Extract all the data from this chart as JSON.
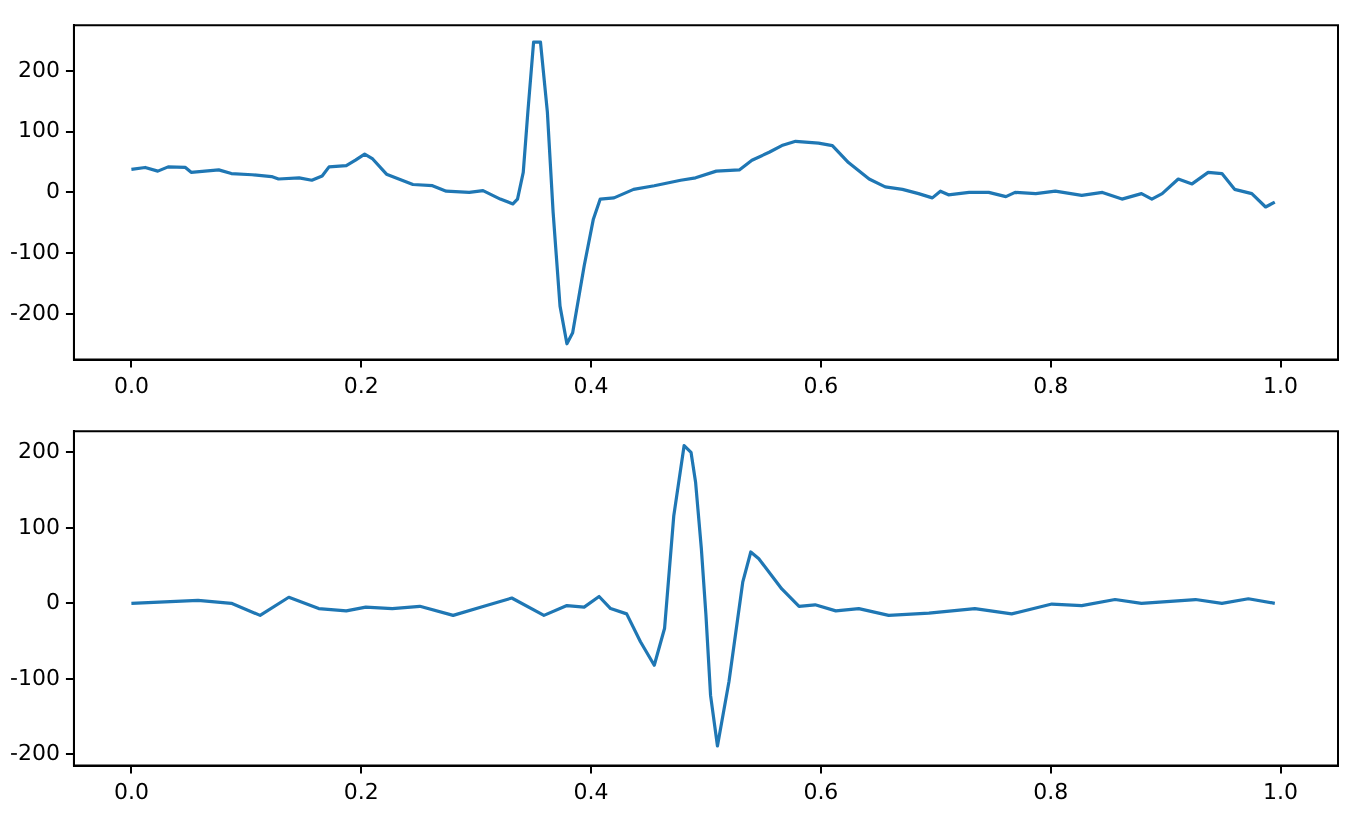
{
  "chart_data": [
    {
      "type": "line",
      "color": "#1f77b4",
      "x": [
        0,
        0.012,
        0.023,
        0.032,
        0.047,
        0.052,
        0.076,
        0.087,
        0.105,
        0.122,
        0.128,
        0.146,
        0.157,
        0.166,
        0.172,
        0.187,
        0.195,
        0.203,
        0.21,
        0.222,
        0.245,
        0.262,
        0.274,
        0.294,
        0.306,
        0.321,
        0.332,
        0.336,
        0.341,
        0.345,
        0.35,
        0.356,
        0.362,
        0.367,
        0.373,
        0.379,
        0.384,
        0.394,
        0.402,
        0.408,
        0.42,
        0.437,
        0.455,
        0.478,
        0.491,
        0.509,
        0.529,
        0.54,
        0.555,
        0.566,
        0.578,
        0.598,
        0.61,
        0.624,
        0.642,
        0.656,
        0.671,
        0.685,
        0.697,
        0.704,
        0.711,
        0.729,
        0.746,
        0.761,
        0.769,
        0.787,
        0.804,
        0.827,
        0.845,
        0.862,
        0.879,
        0.888,
        0.897,
        0.911,
        0.923,
        0.937,
        0.949,
        0.96,
        0.975,
        0.987,
        0.995
      ],
      "values": [
        38,
        41,
        35,
        42,
        41,
        33,
        37,
        31,
        29,
        26,
        22,
        24,
        20,
        27,
        42,
        44,
        53,
        63,
        55,
        30,
        13,
        11,
        2,
        0,
        3,
        -11,
        -19,
        -11,
        33,
        132,
        247,
        247,
        132,
        -33,
        -187,
        -249,
        -231,
        -121,
        -44,
        -11,
        -9,
        5,
        11,
        20,
        24,
        35,
        37,
        53,
        66,
        77,
        84,
        81,
        77,
        49,
        22,
        9,
        5,
        -2,
        -9,
        2,
        -4,
        0,
        0,
        -7,
        0,
        -2,
        2,
        -5,
        0,
        -11,
        -2,
        -11,
        -2,
        22,
        14,
        33,
        31,
        5,
        -2,
        -24,
        -16
      ],
      "xlim": [
        -0.05,
        1.05
      ],
      "ylim": [
        -275,
        275
      ],
      "xticks": [
        {
          "value": 0,
          "label": "0.0"
        },
        {
          "value": 0.2,
          "label": "0.2"
        },
        {
          "value": 0.4,
          "label": "0.4"
        },
        {
          "value": 0.6,
          "label": "0.6"
        },
        {
          "value": 0.8,
          "label": "0.8"
        },
        {
          "value": 1,
          "label": "1.0"
        }
      ],
      "yticks": [
        -200,
        -100,
        0,
        100,
        200
      ]
    },
    {
      "type": "line",
      "color": "#1f77b4",
      "x": [
        0,
        0.058,
        0.087,
        0.112,
        0.137,
        0.163,
        0.187,
        0.204,
        0.227,
        0.251,
        0.28,
        0.309,
        0.331,
        0.359,
        0.379,
        0.394,
        0.407,
        0.417,
        0.431,
        0.443,
        0.455,
        0.464,
        0.472,
        0.481,
        0.487,
        0.491,
        0.496,
        0.5,
        0.504,
        0.51,
        0.52,
        0.532,
        0.539,
        0.546,
        0.566,
        0.581,
        0.595,
        0.613,
        0.633,
        0.659,
        0.694,
        0.734,
        0.766,
        0.801,
        0.827,
        0.856,
        0.879,
        0.926,
        0.949,
        0.972,
        0.995
      ],
      "values": [
        0,
        4,
        0,
        -16,
        8,
        -7,
        -10,
        -5,
        -7,
        -4,
        -16,
        -3,
        7,
        -16,
        -3,
        -5,
        9,
        -7,
        -14,
        -51,
        -82,
        -33,
        116,
        209,
        200,
        160,
        72,
        -16,
        -122,
        -189,
        -104,
        28,
        68,
        59,
        19,
        -4,
        -2,
        -10,
        -7,
        -16,
        -13,
        -7,
        -14,
        -1,
        -3,
        5,
        0,
        5,
        0,
        6,
        0
      ],
      "xlim": [
        -0.05,
        1.05
      ],
      "ylim": [
        -215,
        228
      ],
      "xticks": [
        {
          "value": 0,
          "label": "0.0"
        },
        {
          "value": 0.2,
          "label": "0.2"
        },
        {
          "value": 0.4,
          "label": "0.4"
        },
        {
          "value": 0.6,
          "label": "0.6"
        },
        {
          "value": 0.8,
          "label": "0.8"
        },
        {
          "value": 1,
          "label": "1.0"
        }
      ],
      "yticks": [
        -200,
        -100,
        0,
        100,
        200
      ]
    }
  ]
}
